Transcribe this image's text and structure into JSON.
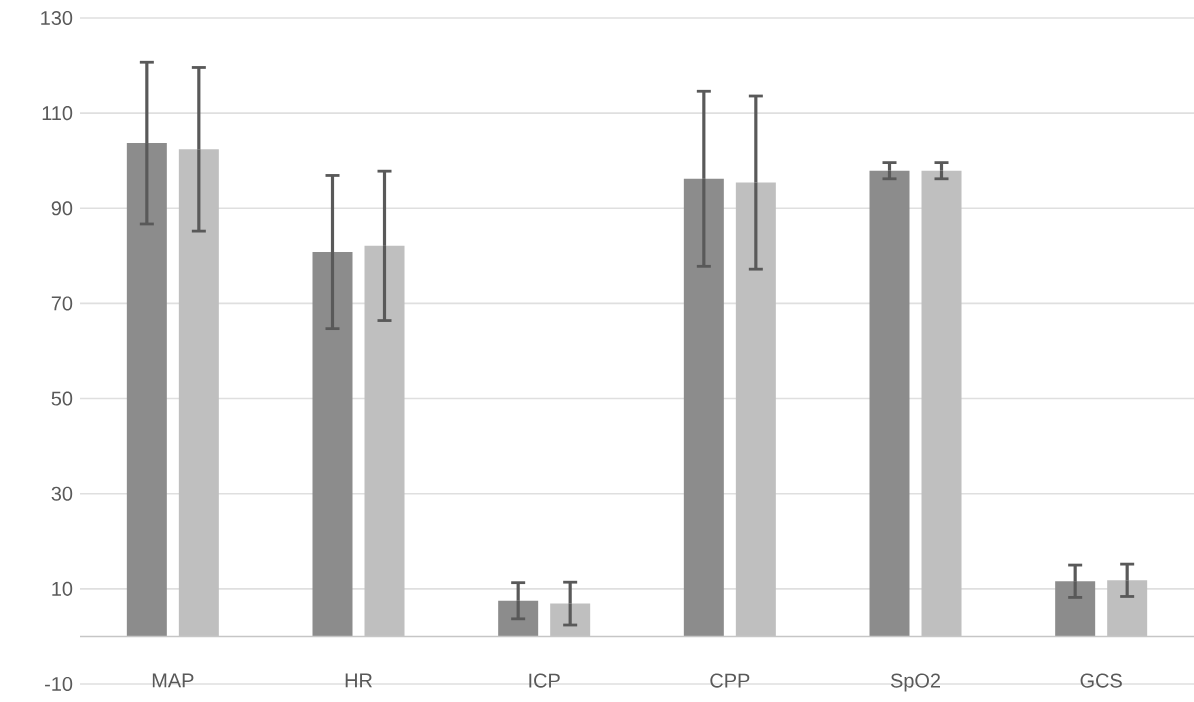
{
  "chart_data": {
    "type": "bar",
    "categories": [
      "MAP",
      "HR",
      "ICP",
      "CPP",
      "SpO2",
      "GCS"
    ],
    "series": [
      {
        "color": "#8c8c8c",
        "values": [
          103.7,
          80.8,
          7.5,
          96.2,
          97.9,
          11.6
        ],
        "errors": [
          17,
          16.1,
          3.8,
          18.4,
          1.7,
          3.4
        ]
      },
      {
        "color": "#bfbfbf",
        "values": [
          102.4,
          82.1,
          6.9,
          95.4,
          97.9,
          11.8
        ],
        "errors": [
          17.2,
          15.7,
          4.5,
          18.2,
          1.7,
          3.4
        ]
      }
    ],
    "ylim": [
      -10,
      130
    ],
    "yticks": [
      -10,
      10,
      30,
      50,
      70,
      90,
      110,
      130
    ],
    "grid": "y"
  }
}
